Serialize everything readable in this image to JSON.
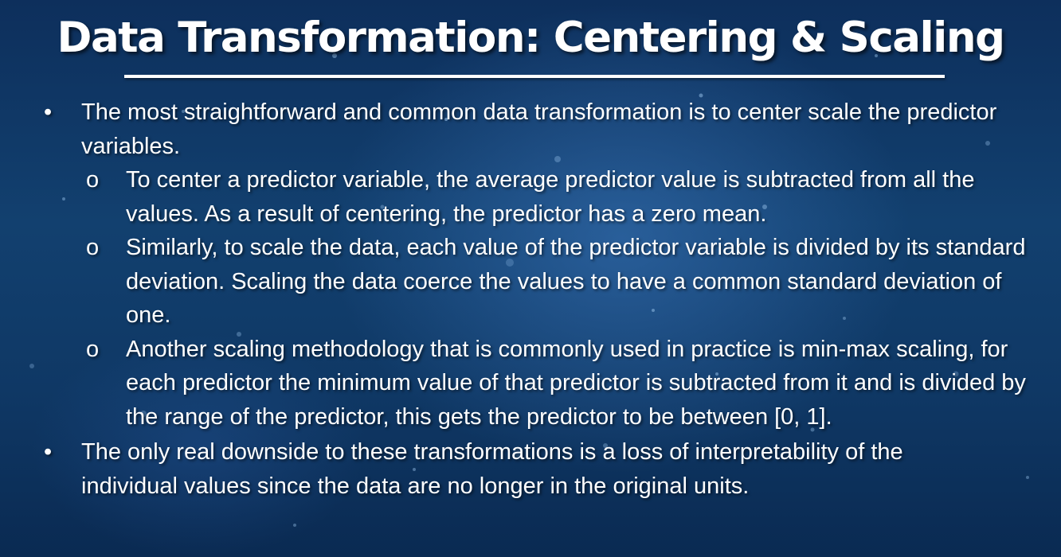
{
  "slide": {
    "title": "Data Transformation: Centering & Scaling",
    "bullet_marker": "•",
    "sub_marker": "o",
    "bullets": [
      {
        "text": "The most straightforward and common data transformation is to center scale the predictor variables.",
        "subs": [
          "To center a predictor variable, the average predictor value is subtracted from all the values. As a result of centering, the predictor has a zero mean.",
          "Similarly, to scale the data, each value of the predictor variable is divided by its standard deviation. Scaling the data coerce the values to have a common standard deviation of one.",
          "Another scaling methodology that is commonly used in practice is min-max scaling, for each predictor the minimum value of that predictor is subtracted from it and is divided by the range of the predictor, this gets the predictor to be between [0, 1]."
        ]
      },
      {
        "text": "The only real downside to these transformations is a loss of interpretability of the individual values since the data are no longer in the original units.",
        "subs": []
      }
    ]
  },
  "colors": {
    "background_top": "#0d2f5c",
    "background_mid": "#12406f",
    "text": "#ffffff"
  }
}
